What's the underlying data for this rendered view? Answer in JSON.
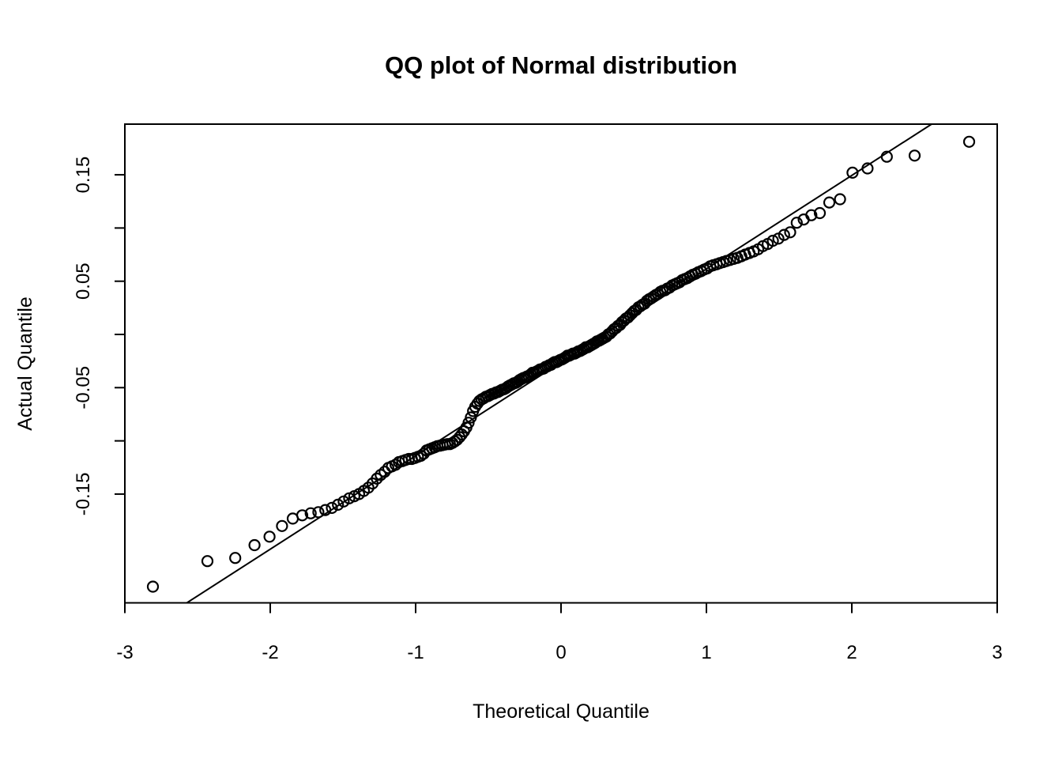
{
  "colors": {
    "foreground": "#000000",
    "background": "#ffffff"
  },
  "chart_data": {
    "type": "scatter",
    "title": "QQ plot of Normal distribution",
    "xlabel": "Theoretical Quantile",
    "ylabel": "Actual Quantile",
    "xlim": [
      -3,
      3
    ],
    "ylim": [
      -0.2522,
      0.1976
    ],
    "x_ticks": [
      -3,
      -2,
      -1,
      0,
      1,
      2,
      3
    ],
    "x_tick_labels": [
      "-3",
      "-2",
      "-1",
      "0",
      "1",
      "2",
      "3"
    ],
    "y_ticks": [
      0.15,
      0.1,
      0.05,
      0,
      -0.05,
      -0.1,
      -0.15
    ],
    "y_tick_labels": [
      "0.15",
      "",
      "0.05",
      "",
      "-0.05",
      "",
      "-0.15"
    ],
    "grid": false,
    "legend": "none",
    "marker": "open-circle",
    "n_points": 200,
    "reference_line": {
      "slope": 0.0878,
      "intercept": -0.0262
    },
    "points": [
      [
        -2.807,
        -0.237
      ],
      [
        -2.432,
        -0.213
      ],
      [
        -2.241,
        -0.21
      ],
      [
        -2.108,
        -0.198
      ],
      [
        -2.005,
        -0.19
      ],
      [
        -1.919,
        -0.18
      ],
      [
        -1.845,
        -0.173
      ],
      [
        -1.78,
        -0.17
      ],
      [
        -1.722,
        -0.168
      ],
      [
        -1.669,
        -0.167
      ],
      [
        -1.621,
        -0.165
      ],
      [
        -1.576,
        -0.163
      ],
      [
        -1.534,
        -0.16
      ],
      [
        -1.495,
        -0.157
      ],
      [
        -1.457,
        -0.154
      ],
      [
        -1.422,
        -0.152
      ],
      [
        -1.389,
        -0.15
      ],
      [
        -1.356,
        -0.147
      ],
      [
        -1.325,
        -0.144
      ],
      [
        -1.296,
        -0.14
      ],
      [
        -1.267,
        -0.1355
      ],
      [
        -1.24,
        -0.132
      ],
      [
        -1.213,
        -0.129
      ],
      [
        -1.188,
        -0.1255
      ],
      [
        -1.163,
        -0.124
      ],
      [
        -1.138,
        -0.1225
      ],
      [
        -1.115,
        -0.12
      ],
      [
        -1.092,
        -0.119
      ],
      [
        -1.07,
        -0.118
      ],
      [
        -1.047,
        -0.117
      ],
      [
        -1.026,
        -0.117
      ],
      [
        -1.005,
        -0.116
      ],
      [
        -0.984,
        -0.115
      ],
      [
        -0.964,
        -0.114
      ],
      [
        -0.944,
        -0.112
      ],
      [
        -0.925,
        -0.109
      ],
      [
        -0.906,
        -0.108
      ],
      [
        -0.887,
        -0.107
      ],
      [
        -0.869,
        -0.106
      ],
      [
        -0.851,
        -0.105
      ],
      [
        -0.833,
        -0.1045
      ],
      [
        -0.815,
        -0.104
      ],
      [
        -0.798,
        -0.1035
      ],
      [
        -0.781,
        -0.103
      ],
      [
        -0.764,
        -0.103
      ],
      [
        -0.747,
        -0.102
      ],
      [
        -0.73,
        -0.1005
      ],
      [
        -0.715,
        -0.099
      ],
      [
        -0.698,
        -0.0965
      ],
      [
        -0.683,
        -0.094
      ],
      [
        -0.667,
        -0.091
      ],
      [
        -0.651,
        -0.0875
      ],
      [
        -0.636,
        -0.083
      ],
      [
        -0.62,
        -0.078
      ],
      [
        -0.605,
        -0.072
      ],
      [
        -0.59,
        -0.068
      ],
      [
        -0.575,
        -0.065
      ],
      [
        -0.561,
        -0.0625
      ],
      [
        -0.546,
        -0.061
      ],
      [
        -0.532,
        -0.06
      ],
      [
        -0.517,
        -0.0585
      ],
      [
        -0.503,
        -0.058
      ],
      [
        -0.489,
        -0.057
      ],
      [
        -0.475,
        -0.056
      ],
      [
        -0.461,
        -0.0555
      ],
      [
        -0.447,
        -0.0545
      ],
      [
        -0.433,
        -0.054
      ],
      [
        -0.419,
        -0.053
      ],
      [
        -0.406,
        -0.052
      ],
      [
        -0.392,
        -0.0515
      ],
      [
        -0.379,
        -0.0505
      ],
      [
        -0.365,
        -0.049
      ],
      [
        -0.352,
        -0.048
      ],
      [
        -0.338,
        -0.047
      ],
      [
        -0.325,
        -0.046
      ],
      [
        -0.312,
        -0.0455
      ],
      [
        -0.299,
        -0.0445
      ],
      [
        -0.286,
        -0.043
      ],
      [
        -0.273,
        -0.042
      ],
      [
        -0.26,
        -0.041
      ],
      [
        -0.247,
        -0.0405
      ],
      [
        -0.234,
        -0.0395
      ],
      [
        -0.221,
        -0.039
      ],
      [
        -0.208,
        -0.0375
      ],
      [
        -0.196,
        -0.036
      ],
      [
        -0.183,
        -0.036
      ],
      [
        -0.17,
        -0.035
      ],
      [
        -0.157,
        -0.034
      ],
      [
        -0.145,
        -0.033
      ],
      [
        -0.132,
        -0.0325
      ],
      [
        -0.119,
        -0.032
      ],
      [
        -0.107,
        -0.0305
      ],
      [
        -0.094,
        -0.03
      ],
      [
        -0.082,
        -0.029
      ],
      [
        -0.069,
        -0.0285
      ],
      [
        -0.056,
        -0.027
      ],
      [
        -0.044,
        -0.026
      ],
      [
        -0.031,
        -0.026
      ],
      [
        -0.019,
        -0.025
      ],
      [
        -0.006,
        -0.024
      ],
      [
        0.006,
        -0.0235
      ],
      [
        0.019,
        -0.0225
      ],
      [
        0.031,
        -0.0215
      ],
      [
        0.044,
        -0.02
      ],
      [
        0.056,
        -0.02
      ],
      [
        0.069,
        -0.019
      ],
      [
        0.082,
        -0.018
      ],
      [
        0.094,
        -0.018
      ],
      [
        0.107,
        -0.017
      ],
      [
        0.119,
        -0.016
      ],
      [
        0.132,
        -0.0155
      ],
      [
        0.145,
        -0.0145
      ],
      [
        0.157,
        -0.0135
      ],
      [
        0.17,
        -0.012
      ],
      [
        0.183,
        -0.012
      ],
      [
        0.196,
        -0.011
      ],
      [
        0.208,
        -0.01
      ],
      [
        0.221,
        -0.009
      ],
      [
        0.234,
        -0.008
      ],
      [
        0.247,
        -0.0065
      ],
      [
        0.26,
        -0.006
      ],
      [
        0.273,
        -0.005
      ],
      [
        0.286,
        -0.004
      ],
      [
        0.299,
        -0.003
      ],
      [
        0.312,
        -0.002
      ],
      [
        0.325,
        0.0
      ],
      [
        0.338,
        0.001
      ],
      [
        0.352,
        0.003
      ],
      [
        0.365,
        0.005
      ],
      [
        0.379,
        0.006
      ],
      [
        0.392,
        0.008
      ],
      [
        0.406,
        0.009
      ],
      [
        0.419,
        0.0115
      ],
      [
        0.433,
        0.013
      ],
      [
        0.447,
        0.015
      ],
      [
        0.461,
        0.016
      ],
      [
        0.475,
        0.018
      ],
      [
        0.489,
        0.02
      ],
      [
        0.503,
        0.022
      ],
      [
        0.517,
        0.023
      ],
      [
        0.532,
        0.0255
      ],
      [
        0.546,
        0.0265
      ],
      [
        0.561,
        0.028
      ],
      [
        0.575,
        0.029
      ],
      [
        0.59,
        0.0315
      ],
      [
        0.605,
        0.033
      ],
      [
        0.62,
        0.034
      ],
      [
        0.636,
        0.0355
      ],
      [
        0.651,
        0.037
      ],
      [
        0.667,
        0.038
      ],
      [
        0.683,
        0.04
      ],
      [
        0.698,
        0.041
      ],
      [
        0.715,
        0.0415
      ],
      [
        0.73,
        0.043
      ],
      [
        0.747,
        0.044
      ],
      [
        0.764,
        0.046
      ],
      [
        0.781,
        0.047
      ],
      [
        0.798,
        0.048
      ],
      [
        0.815,
        0.049
      ],
      [
        0.833,
        0.051
      ],
      [
        0.851,
        0.052
      ],
      [
        0.869,
        0.053
      ],
      [
        0.887,
        0.0545
      ],
      [
        0.906,
        0.056
      ],
      [
        0.925,
        0.057
      ],
      [
        0.944,
        0.0585
      ],
      [
        0.964,
        0.0595
      ],
      [
        0.984,
        0.061
      ],
      [
        1.005,
        0.062
      ],
      [
        1.026,
        0.064
      ],
      [
        1.047,
        0.065
      ],
      [
        1.07,
        0.066
      ],
      [
        1.092,
        0.067
      ],
      [
        1.115,
        0.068
      ],
      [
        1.138,
        0.069
      ],
      [
        1.163,
        0.07
      ],
      [
        1.188,
        0.071
      ],
      [
        1.213,
        0.072
      ],
      [
        1.24,
        0.0735
      ],
      [
        1.267,
        0.075
      ],
      [
        1.296,
        0.0765
      ],
      [
        1.325,
        0.078
      ],
      [
        1.356,
        0.08
      ],
      [
        1.389,
        0.083
      ],
      [
        1.422,
        0.085
      ],
      [
        1.457,
        0.088
      ],
      [
        1.495,
        0.09
      ],
      [
        1.534,
        0.0935
      ],
      [
        1.576,
        0.096
      ],
      [
        1.621,
        0.105
      ],
      [
        1.669,
        0.108
      ],
      [
        1.722,
        0.112
      ],
      [
        1.78,
        0.114
      ],
      [
        1.845,
        0.124
      ],
      [
        1.919,
        0.127
      ],
      [
        2.005,
        0.152
      ],
      [
        2.108,
        0.156
      ],
      [
        2.241,
        0.167
      ],
      [
        2.432,
        0.168
      ],
      [
        2.807,
        0.181
      ]
    ]
  }
}
